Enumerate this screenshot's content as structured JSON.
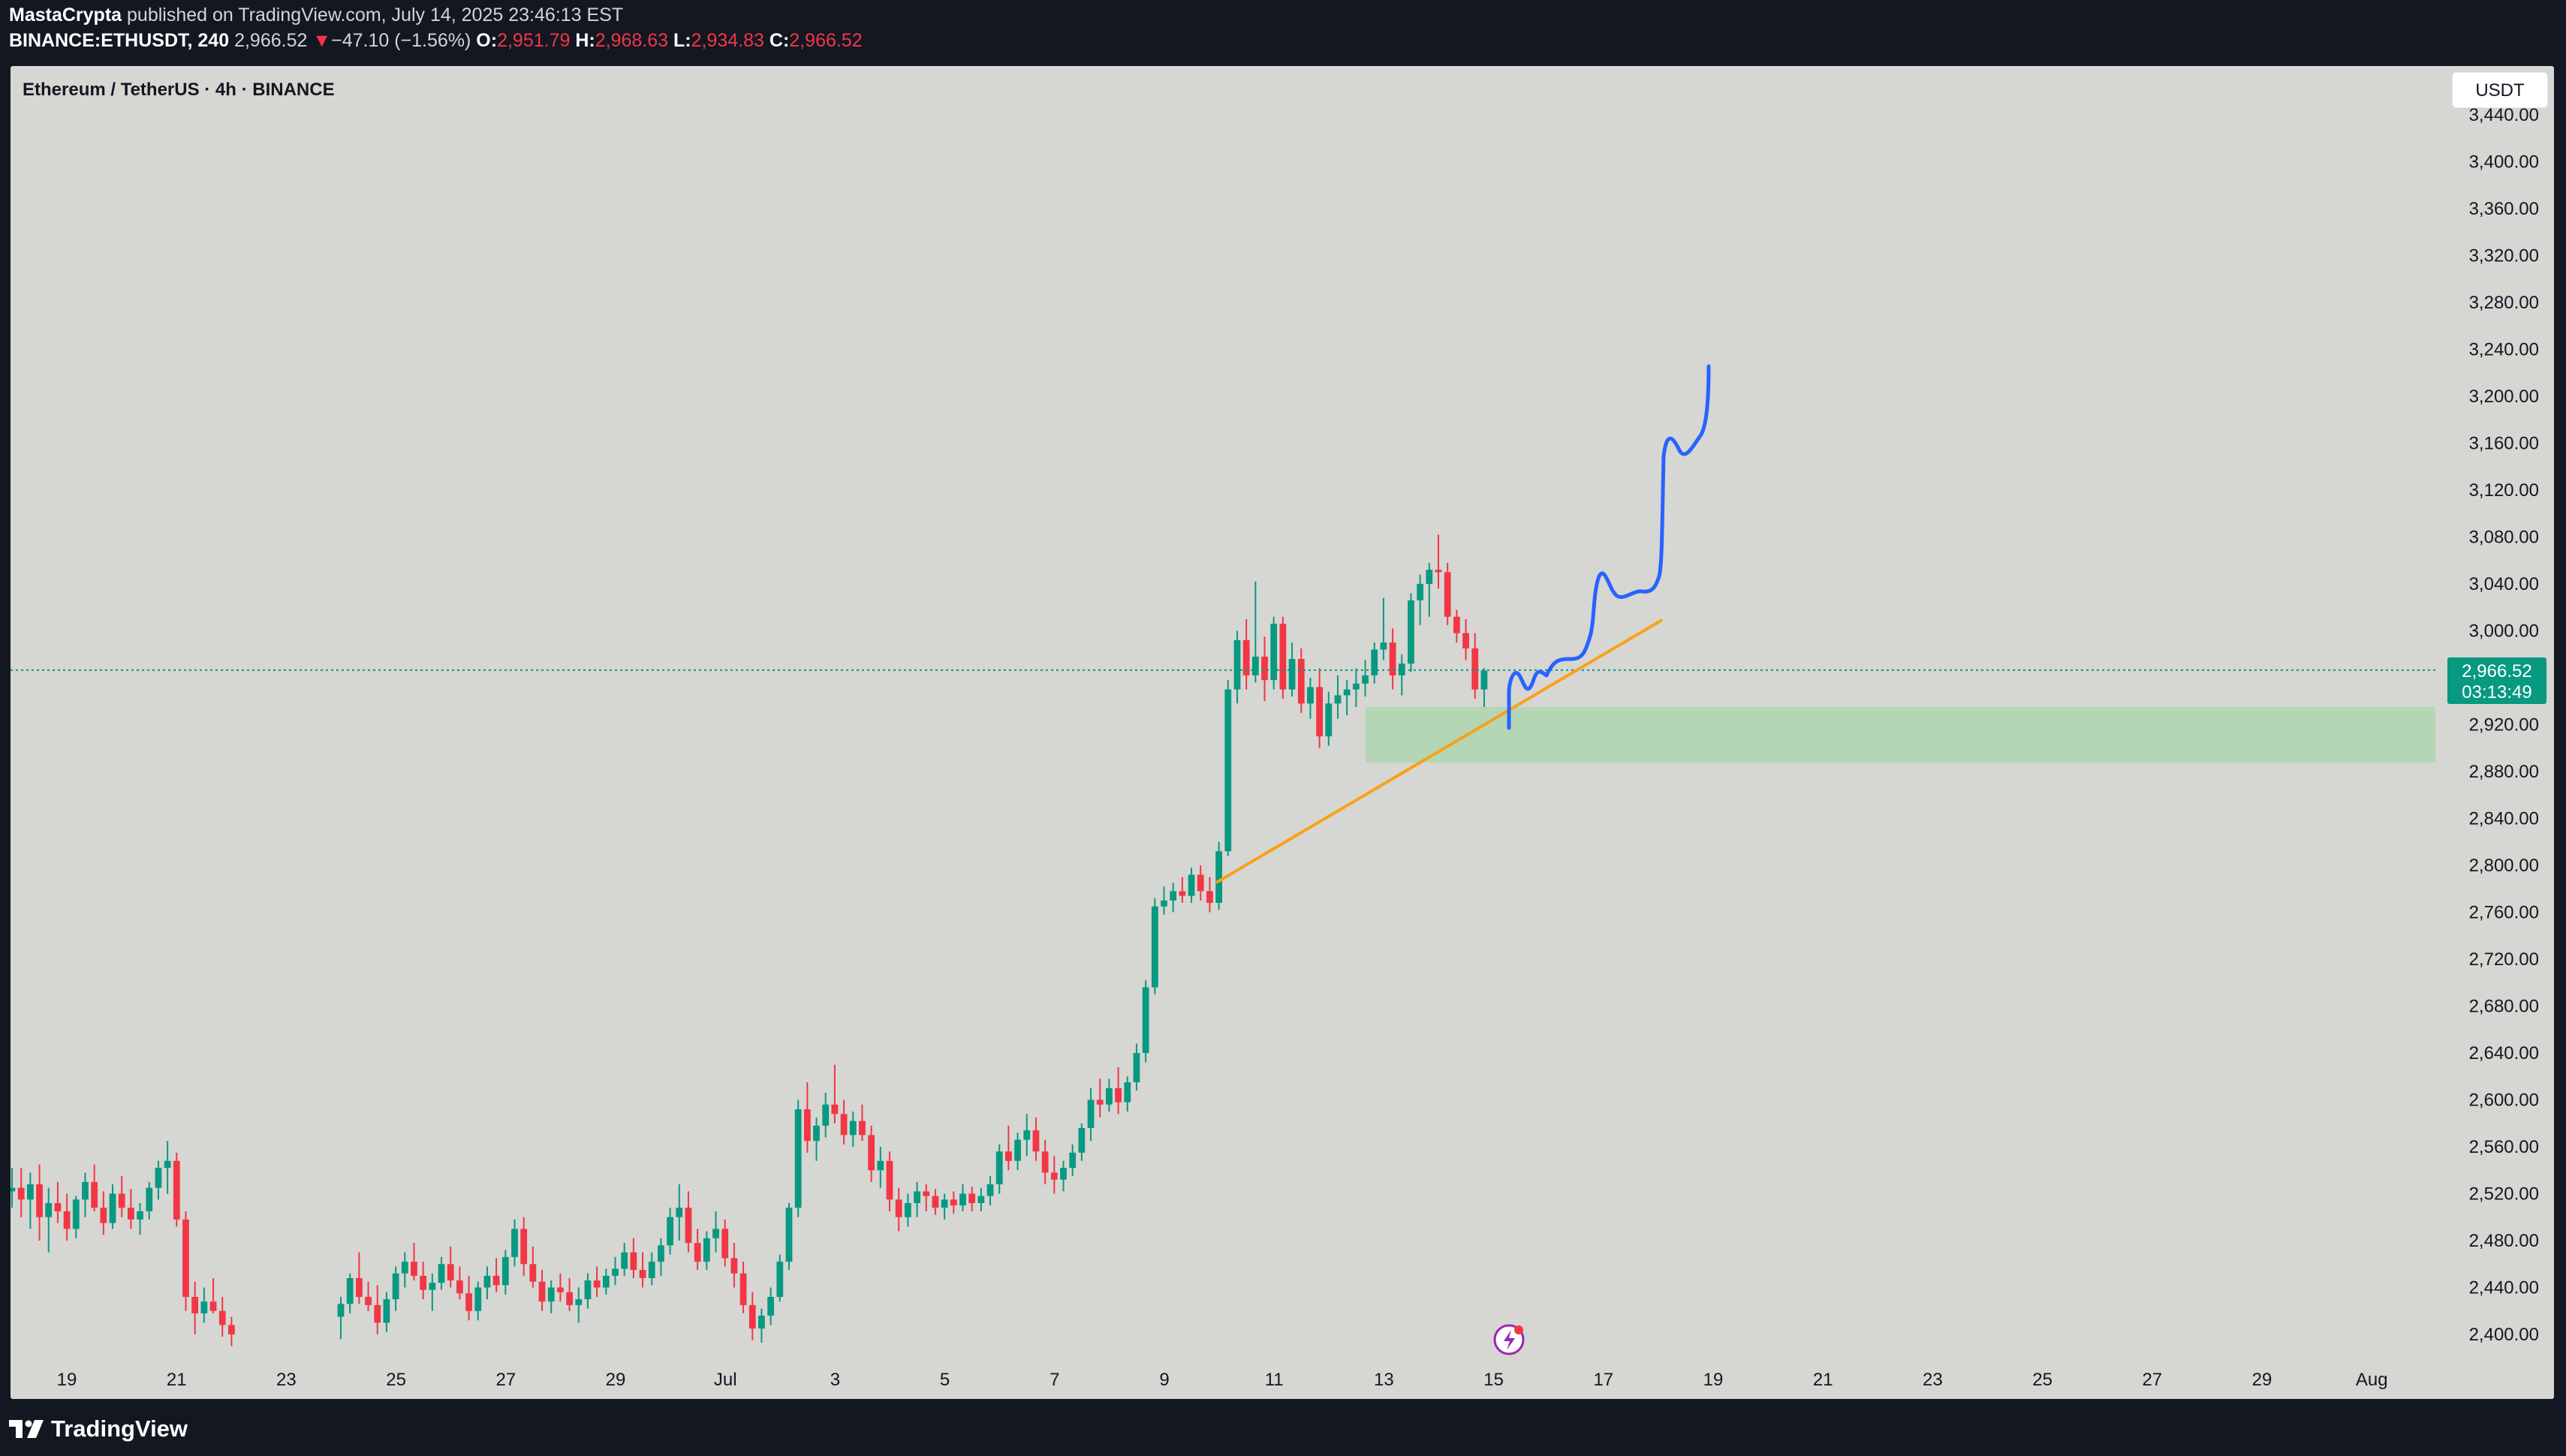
{
  "header": {
    "author": "MastaCrypta",
    "published_text": "published on TradingView.com, July 14, 2025 23:46:13 EST",
    "symbol_line": "BINANCE:ETHUSDT, 240",
    "last": "2,966.52",
    "change_arrow": "▼",
    "change": "−47.10 (−1.56%)",
    "open_label": "O:",
    "open": "2,951.79",
    "high_label": "H:",
    "high": "2,968.63",
    "low_label": "L:",
    "low": "2,934.83",
    "close_label": "C:",
    "close": "2,966.52"
  },
  "chart": {
    "legend": "Ethereum / TetherUS · 4h · BINANCE",
    "currency_button": "USDT",
    "price_label": "2,966.52",
    "countdown": "03:13:49",
    "colors": {
      "up": "#089981",
      "down": "#f23645",
      "trendline": "#f7a21b",
      "projection": "#2962ff",
      "zone": "#a5d6a7",
      "background": "#d6d6d2",
      "price_tag": "#089981"
    },
    "event_icon": "lightning-icon"
  },
  "footer": {
    "brand": "TradingView",
    "brand_icon": "tradingview-logo-icon"
  },
  "chart_data": {
    "type": "candlestick",
    "ylim": [
      2385,
      3450
    ],
    "y_ticks": [
      "2,400.00",
      "2,440.00",
      "2,480.00",
      "2,520.00",
      "2,560.00",
      "2,600.00",
      "2,640.00",
      "2,680.00",
      "2,720.00",
      "2,760.00",
      "2,800.00",
      "2,840.00",
      "2,880.00",
      "2,920.00",
      "2,960.00",
      "3,000.00",
      "3,040.00",
      "3,080.00",
      "3,120.00",
      "3,160.00",
      "3,200.00",
      "3,240.00",
      "3,280.00",
      "3,320.00",
      "3,360.00",
      "3,400.00",
      "3,440.00"
    ],
    "x_ticks": [
      "19",
      "21",
      "23",
      "25",
      "27",
      "29",
      "Jul",
      "3",
      "5",
      "7",
      "9",
      "11",
      "13",
      "15",
      "17",
      "19",
      "21",
      "23",
      "25",
      "27",
      "29",
      "Aug"
    ],
    "candles": [
      [
        2522,
        2542,
        2508,
        2525
      ],
      [
        2525,
        2542,
        2500,
        2515
      ],
      [
        2515,
        2538,
        2490,
        2528
      ],
      [
        2528,
        2545,
        2480,
        2500
      ],
      [
        2500,
        2525,
        2470,
        2512
      ],
      [
        2512,
        2530,
        2495,
        2505
      ],
      [
        2505,
        2520,
        2480,
        2490
      ],
      [
        2490,
        2518,
        2482,
        2515
      ],
      [
        2515,
        2538,
        2500,
        2530
      ],
      [
        2530,
        2545,
        2505,
        2508
      ],
      [
        2508,
        2522,
        2485,
        2495
      ],
      [
        2495,
        2528,
        2490,
        2520
      ],
      [
        2520,
        2535,
        2500,
        2508
      ],
      [
        2508,
        2524,
        2490,
        2498
      ],
      [
        2498,
        2512,
        2485,
        2505
      ],
      [
        2505,
        2530,
        2498,
        2525
      ],
      [
        2525,
        2548,
        2515,
        2542
      ],
      [
        2542,
        2565,
        2520,
        2548
      ],
      [
        2548,
        2555,
        2492,
        2498
      ],
      [
        2498,
        2505,
        2420,
        2432
      ],
      [
        2432,
        2445,
        2400,
        2418
      ],
      [
        2418,
        2440,
        2410,
        2428
      ],
      [
        2428,
        2448,
        2418,
        2420
      ],
      [
        2420,
        2432,
        2398,
        2408
      ],
      [
        2408,
        2415,
        2390,
        2400
      ]
    ],
    "candles_2": [
      [
        2415,
        2432,
        2396,
        2426
      ],
      [
        2426,
        2452,
        2418,
        2448
      ],
      [
        2448,
        2470,
        2426,
        2432
      ],
      [
        2432,
        2445,
        2420,
        2425
      ],
      [
        2425,
        2442,
        2400,
        2410
      ],
      [
        2410,
        2436,
        2402,
        2430
      ],
      [
        2430,
        2458,
        2420,
        2452
      ],
      [
        2452,
        2470,
        2440,
        2462
      ],
      [
        2462,
        2478,
        2446,
        2450
      ],
      [
        2450,
        2462,
        2430,
        2438
      ],
      [
        2438,
        2452,
        2420,
        2444
      ],
      [
        2444,
        2466,
        2438,
        2460
      ],
      [
        2460,
        2475,
        2440,
        2446
      ],
      [
        2446,
        2458,
        2430,
        2435
      ],
      [
        2435,
        2450,
        2412,
        2420
      ],
      [
        2420,
        2445,
        2412,
        2440
      ],
      [
        2440,
        2458,
        2430,
        2450
      ],
      [
        2450,
        2465,
        2436,
        2442
      ],
      [
        2442,
        2472,
        2434,
        2466
      ],
      [
        2466,
        2498,
        2458,
        2490
      ],
      [
        2490,
        2500,
        2450,
        2460
      ],
      [
        2460,
        2475,
        2440,
        2445
      ],
      [
        2445,
        2455,
        2420,
        2428
      ],
      [
        2428,
        2446,
        2418,
        2440
      ],
      [
        2440,
        2452,
        2428,
        2436
      ],
      [
        2436,
        2448,
        2420,
        2425
      ],
      [
        2425,
        2440,
        2410,
        2430
      ],
      [
        2430,
        2452,
        2422,
        2446
      ],
      [
        2446,
        2458,
        2432,
        2440
      ],
      [
        2440,
        2456,
        2434,
        2450
      ],
      [
        2450,
        2466,
        2442,
        2456
      ],
      [
        2456,
        2478,
        2450,
        2470
      ],
      [
        2470,
        2482,
        2448,
        2455
      ],
      [
        2455,
        2470,
        2440,
        2448
      ],
      [
        2448,
        2470,
        2442,
        2462
      ],
      [
        2462,
        2482,
        2450,
        2476
      ],
      [
        2476,
        2508,
        2468,
        2500
      ],
      [
        2500,
        2528,
        2480,
        2508
      ],
      [
        2508,
        2522,
        2470,
        2478
      ],
      [
        2478,
        2490,
        2455,
        2462
      ],
      [
        2462,
        2488,
        2455,
        2482
      ],
      [
        2482,
        2505,
        2470,
        2490
      ],
      [
        2490,
        2498,
        2458,
        2465
      ],
      [
        2465,
        2478,
        2440,
        2452
      ],
      [
        2452,
        2462,
        2418,
        2425
      ],
      [
        2425,
        2436,
        2395,
        2405
      ],
      [
        2405,
        2422,
        2393,
        2416
      ],
      [
        2416,
        2440,
        2408,
        2432
      ],
      [
        2432,
        2468,
        2428,
        2462
      ],
      [
        2462,
        2512,
        2455,
        2508
      ],
      [
        2508,
        2600,
        2500,
        2592
      ],
      [
        2592,
        2615,
        2555,
        2565
      ],
      [
        2565,
        2585,
        2548,
        2578
      ],
      [
        2578,
        2606,
        2568,
        2596
      ],
      [
        2596,
        2630,
        2580,
        2588
      ],
      [
        2588,
        2600,
        2562,
        2570
      ],
      [
        2570,
        2590,
        2560,
        2582
      ],
      [
        2582,
        2596,
        2565,
        2570
      ],
      [
        2570,
        2578,
        2530,
        2540
      ],
      [
        2540,
        2560,
        2525,
        2548
      ],
      [
        2548,
        2556,
        2505,
        2515
      ],
      [
        2515,
        2525,
        2488,
        2500
      ],
      [
        2500,
        2520,
        2492,
        2512
      ],
      [
        2512,
        2530,
        2500,
        2522
      ],
      [
        2522,
        2528,
        2505,
        2518
      ],
      [
        2518,
        2524,
        2502,
        2508
      ],
      [
        2508,
        2520,
        2498,
        2515
      ],
      [
        2515,
        2522,
        2503,
        2510
      ],
      [
        2510,
        2528,
        2505,
        2520
      ],
      [
        2520,
        2526,
        2505,
        2512
      ],
      [
        2512,
        2525,
        2505,
        2518
      ],
      [
        2518,
        2535,
        2510,
        2528
      ],
      [
        2528,
        2562,
        2520,
        2556
      ],
      [
        2556,
        2578,
        2540,
        2548
      ],
      [
        2548,
        2572,
        2540,
        2566
      ],
      [
        2566,
        2588,
        2552,
        2574
      ],
      [
        2574,
        2585,
        2548,
        2556
      ],
      [
        2556,
        2566,
        2528,
        2538
      ],
      [
        2538,
        2552,
        2520,
        2532
      ],
      [
        2532,
        2548,
        2522,
        2542
      ],
      [
        2542,
        2562,
        2535,
        2555
      ],
      [
        2555,
        2580,
        2548,
        2576
      ],
      [
        2576,
        2610,
        2565,
        2600
      ],
      [
        2600,
        2618,
        2585,
        2596
      ],
      [
        2596,
        2618,
        2590,
        2610
      ],
      [
        2610,
        2628,
        2588,
        2598
      ],
      [
        2598,
        2620,
        2590,
        2615
      ],
      [
        2615,
        2648,
        2608,
        2640
      ],
      [
        2640,
        2702,
        2632,
        2696
      ],
      [
        2696,
        2772,
        2690,
        2765
      ],
      [
        2765,
        2782,
        2758,
        2770
      ],
      [
        2770,
        2785,
        2760,
        2778
      ],
      [
        2778,
        2790,
        2768,
        2774
      ],
      [
        2774,
        2798,
        2768,
        2792
      ],
      [
        2792,
        2800,
        2770,
        2778
      ],
      [
        2778,
        2790,
        2760,
        2768
      ],
      [
        2768,
        2820,
        2762,
        2812
      ],
      [
        2812,
        2958,
        2808,
        2950
      ],
      [
        2950,
        3000,
        2938,
        2992
      ],
      [
        2992,
        3010,
        2950,
        2962
      ],
      [
        2962,
        3042,
        2956,
        2978
      ],
      [
        2978,
        2995,
        2940,
        2958
      ],
      [
        2958,
        3012,
        2950,
        3006
      ],
      [
        3006,
        3012,
        2942,
        2950
      ],
      [
        2950,
        2990,
        2944,
        2976
      ],
      [
        2976,
        2985,
        2930,
        2938
      ],
      [
        2938,
        2960,
        2925,
        2952
      ],
      [
        2952,
        2968,
        2900,
        2910
      ],
      [
        2910,
        2948,
        2902,
        2938
      ],
      [
        2938,
        2962,
        2925,
        2945
      ],
      [
        2945,
        2958,
        2928,
        2950
      ],
      [
        2950,
        2968,
        2935,
        2955
      ],
      [
        2955,
        2975,
        2944,
        2962
      ],
      [
        2962,
        2990,
        2955,
        2984
      ],
      [
        2984,
        3028,
        2975,
        2990
      ],
      [
        2990,
        3002,
        2950,
        2962
      ],
      [
        2962,
        2980,
        2945,
        2972
      ],
      [
        2972,
        3032,
        2965,
        3026
      ],
      [
        3026,
        3048,
        3005,
        3040
      ],
      [
        3040,
        3058,
        3012,
        3052
      ],
      [
        3052,
        3082,
        3036,
        3050
      ],
      [
        3050,
        3058,
        3005,
        3012
      ],
      [
        3012,
        3018,
        2990,
        2998
      ],
      [
        2998,
        3010,
        2975,
        2985
      ],
      [
        2985,
        2998,
        2942,
        2950
      ],
      [
        2950,
        2968,
        2935,
        2966
      ]
    ],
    "zone": {
      "x_from": "Jul 12",
      "low": 2889,
      "high": 2938
    },
    "trendline": [
      [
        2786,
        "Jul 10"
      ],
      [
        3012,
        "Jul 18"
      ]
    ],
    "projection": [
      2945,
      2915,
      2965,
      2980,
      3040,
      3025,
      3050,
      3160,
      3140,
      3225
    ]
  }
}
